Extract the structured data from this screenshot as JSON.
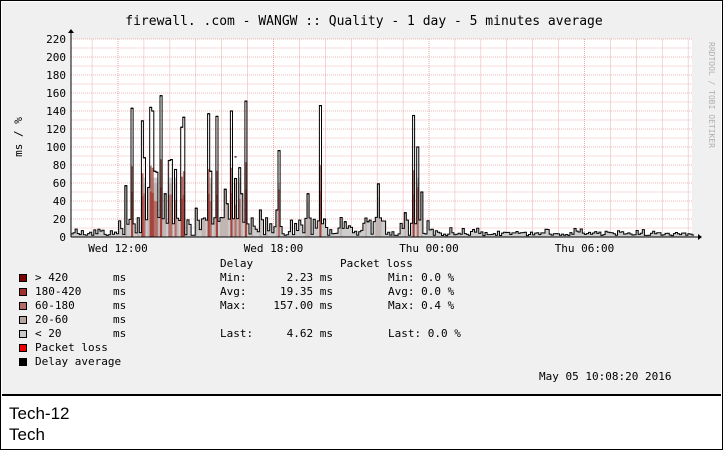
{
  "chart_data": {
    "type": "area",
    "title": "firewall.        .com - WANGW :: Quality - 1 day - 5 minutes average",
    "ylabel": "ms / %",
    "xlabel": "",
    "ylim": [
      0,
      220
    ],
    "y_ticks": [
      0,
      20,
      40,
      60,
      80,
      100,
      120,
      140,
      160,
      180,
      200,
      220
    ],
    "x_ticks": [
      "Wed 12:00",
      "Wed 18:00",
      "Thu 00:00",
      "Thu 06:00"
    ],
    "grid": true,
    "spikes": [
      {
        "x": 0.04,
        "y": 57
      },
      {
        "x": 0.085,
        "y": 143
      },
      {
        "x": 0.15,
        "y": 129
      },
      {
        "x": 0.168,
        "y": 88
      },
      {
        "x": 0.185,
        "y": 55
      },
      {
        "x": 0.205,
        "y": 144
      },
      {
        "x": 0.215,
        "y": 140
      },
      {
        "x": 0.225,
        "y": 73
      },
      {
        "x": 0.25,
        "y": 72
      },
      {
        "x": 0.265,
        "y": 157
      },
      {
        "x": 0.292,
        "y": 48
      },
      {
        "x": 0.33,
        "y": 85
      },
      {
        "x": 0.337,
        "y": 86
      },
      {
        "x": 0.362,
        "y": 75
      },
      {
        "x": 0.4,
        "y": 122
      },
      {
        "x": 0.412,
        "y": 133
      },
      {
        "x": 0.49,
        "y": 32
      },
      {
        "x": 0.57,
        "y": 137
      },
      {
        "x": 0.583,
        "y": 73
      },
      {
        "x": 0.59,
        "y": 73
      },
      {
        "x": 0.623,
        "y": 134
      },
      {
        "x": 0.682,
        "y": 53
      },
      {
        "x": 0.7,
        "y": 37
      },
      {
        "x": 0.728,
        "y": 140
      },
      {
        "x": 0.746,
        "y": 89
      },
      {
        "x": 0.752,
        "y": 65
      },
      {
        "x": 0.776,
        "y": 77
      },
      {
        "x": 0.793,
        "y": 48
      },
      {
        "x": 0.815,
        "y": 151
      },
      {
        "x": 0.905,
        "y": 30
      },
      {
        "x": 1.015,
        "y": 30
      },
      {
        "x": 1.03,
        "y": 96
      },
      {
        "x": 1.14,
        "y": 15
      },
      {
        "x": 1.215,
        "y": 48
      },
      {
        "x": 1.3,
        "y": 146
      },
      {
        "x": 1.325,
        "y": 20
      },
      {
        "x": 1.46,
        "y": 17
      },
      {
        "x": 1.595,
        "y": 17
      },
      {
        "x": 1.665,
        "y": 59
      },
      {
        "x": 1.845,
        "y": 27
      },
      {
        "x": 1.89,
        "y": 135
      },
      {
        "x": 1.918,
        "y": 100
      },
      {
        "x": 1.945,
        "y": 50
      }
    ],
    "series": [
      {
        "name": "> 420",
        "color": "#7e0000"
      },
      {
        "name": "180-420",
        "color": "#a0302a"
      },
      {
        "name": "60-180",
        "color": "#b26b66"
      },
      {
        "name": "20-60",
        "color": "#b8a4a0"
      },
      {
        "name": "< 20",
        "color": "#c8c8c8"
      },
      {
        "name": "Packet loss",
        "color": "#ee0000"
      },
      {
        "name": "Delay average",
        "color": "#000000"
      }
    ]
  },
  "legend": {
    "unit": "ms",
    "delay_header": "Delay",
    "loss_header": "Packet loss"
  },
  "delay_stats": {
    "min_label": "Min:",
    "min_value": "2.23 ms",
    "avg_label": "Avg:",
    "avg_value": "19.35 ms",
    "max_label": "Max:",
    "max_value": "157.00 ms",
    "last_label": "Last:",
    "last_value": "4.62 ms"
  },
  "loss_stats": {
    "min": "Min: 0.0 %",
    "avg": "Avg: 0.0 %",
    "max": "Max: 0.4 %",
    "last": "Last: 0.0 %"
  },
  "timestamp": "May 05 10:08:20 2016",
  "side_credit": "RRDTOOL / TOBI OETIKER",
  "caption": {
    "line1": "Tech-12",
    "line2": "Tech"
  }
}
